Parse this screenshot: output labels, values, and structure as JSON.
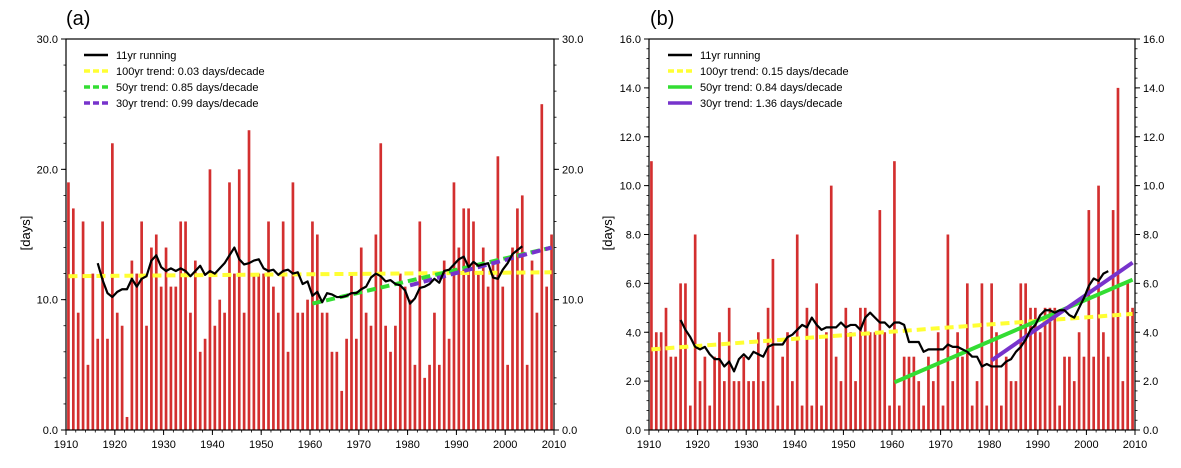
{
  "chart_data": [
    {
      "panel": "(a)",
      "type": "bar",
      "ylabel": "[days]",
      "xlim": [
        1910,
        2010
      ],
      "ylim": [
        0,
        30
      ],
      "y_ticks": [
        "0.0",
        "10.0",
        "20.0",
        "30.0"
      ],
      "x_ticks": [
        "1910",
        "1920",
        "1930",
        "1940",
        "1950",
        "1960",
        "1970",
        "1980",
        "1990",
        "2000",
        "2010"
      ],
      "grid": false,
      "legend_position": "top-left",
      "colors": {
        "bars": "#d32f2f",
        "running": "#000000",
        "trend100": "#ffff33",
        "trend50": "#33dd33",
        "trend30": "#7733cc"
      },
      "years": [
        1910,
        1911,
        1912,
        1913,
        1914,
        1915,
        1916,
        1917,
        1918,
        1919,
        1920,
        1921,
        1922,
        1923,
        1924,
        1925,
        1926,
        1927,
        1928,
        1929,
        1930,
        1931,
        1932,
        1933,
        1934,
        1935,
        1936,
        1937,
        1938,
        1939,
        1940,
        1941,
        1942,
        1943,
        1944,
        1945,
        1946,
        1947,
        1948,
        1949,
        1950,
        1951,
        1952,
        1953,
        1954,
        1955,
        1956,
        1957,
        1958,
        1959,
        1960,
        1961,
        1962,
        1963,
        1964,
        1965,
        1966,
        1967,
        1968,
        1969,
        1970,
        1971,
        1972,
        1973,
        1974,
        1975,
        1976,
        1977,
        1978,
        1979,
        1980,
        1981,
        1982,
        1983,
        1984,
        1985,
        1986,
        1987,
        1988,
        1989,
        1990,
        1991,
        1992,
        1993,
        1994,
        1995,
        1996,
        1997,
        1998,
        1999,
        2000,
        2001,
        2002,
        2003,
        2004,
        2005,
        2006,
        2007,
        2008,
        2009
      ],
      "values": [
        19,
        17,
        9,
        16,
        5,
        12,
        7,
        16,
        7,
        22,
        9,
        8,
        1,
        13,
        12,
        16,
        8,
        14,
        15,
        11,
        14,
        11,
        11,
        16,
        16,
        9,
        13,
        6,
        7,
        20,
        8,
        10,
        9,
        19,
        12,
        20,
        9,
        23,
        12,
        12,
        12,
        16,
        11,
        9,
        16,
        6,
        19,
        9,
        9,
        10,
        16,
        15,
        9,
        9,
        6,
        6,
        3,
        7,
        12,
        7,
        14,
        9,
        8,
        15,
        22,
        8,
        6,
        8,
        12,
        11,
        10,
        5,
        16,
        4,
        5,
        9,
        5,
        13,
        7,
        19,
        14,
        17,
        17,
        16,
        12,
        14,
        11,
        13,
        21,
        11,
        5,
        14,
        17,
        18,
        5,
        13,
        9,
        25,
        11,
        15
      ],
      "series": [
        {
          "name": "11yr running",
          "x": [
            1916,
            1917,
            1918,
            1919,
            1920,
            1921,
            1922,
            1923,
            1924,
            1925,
            1926,
            1927,
            1928,
            1929,
            1930,
            1931,
            1932,
            1933,
            1934,
            1935,
            1936,
            1937,
            1938,
            1939,
            1940,
            1941,
            1942,
            1943,
            1944,
            1945,
            1946,
            1947,
            1948,
            1949,
            1950,
            1951,
            1952,
            1953,
            1954,
            1955,
            1956,
            1957,
            1958,
            1959,
            1960,
            1961,
            1962,
            1963,
            1964,
            1965,
            1966,
            1967,
            1968,
            1969,
            1970,
            1971,
            1972,
            1973,
            1974,
            1975,
            1976,
            1977,
            1978,
            1979,
            1980,
            1981,
            1982,
            1983,
            1984,
            1985,
            1986,
            1987,
            1988,
            1989,
            1990,
            1991,
            1992,
            1993,
            1994,
            1995,
            1996,
            1997,
            1998,
            1999,
            2000,
            2001,
            2002,
            2003
          ],
          "y": [
            12.8,
            11.5,
            10.5,
            10.2,
            10.6,
            10.8,
            10.8,
            11.6,
            11,
            11.6,
            11.8,
            13,
            13.4,
            12.5,
            12.2,
            12.4,
            12.2,
            12.4,
            12.2,
            11.8,
            12.2,
            12.6,
            11.9,
            12.2,
            12,
            12.4,
            12.8,
            13.4,
            14,
            13.1,
            12.7,
            12.8,
            13,
            13.1,
            12.4,
            12.2,
            12.3,
            11.9,
            12.2,
            12.3,
            12,
            12.1,
            11.2,
            11.4,
            10.3,
            10.6,
            9.8,
            10.5,
            10.4,
            10.2,
            10.2,
            10.3,
            10.5,
            10.5,
            10.8,
            11,
            11.7,
            12,
            11.8,
            11.4,
            11.5,
            11.2,
            11.1,
            10.7,
            9.7,
            10.1,
            10.9,
            11,
            11.2,
            11.6,
            11.3,
            12.2,
            12.3,
            12.7,
            13.1,
            13.3,
            12.5,
            12.9,
            12.6,
            12.7,
            12.8,
            11.7,
            11.6,
            12.3,
            12.8,
            13.5,
            13.8,
            14.1
          ]
        },
        {
          "name": "100yr trend:  0.03 days/decade",
          "x": [
            1910,
            2009
          ],
          "y": [
            11.8,
            12.1
          ],
          "dashed": true
        },
        {
          "name": "50yr trend:  0.85 days/decade",
          "x": [
            1960,
            2009
          ],
          "y": [
            9.7,
            14.0
          ],
          "dashed": true
        },
        {
          "name": "30yr trend:  0.99 days/decade",
          "x": [
            1980,
            2009
          ],
          "y": [
            11.1,
            14.0
          ],
          "dashed": true
        }
      ]
    },
    {
      "panel": "(b)",
      "type": "bar",
      "ylabel": "[days]",
      "xlim": [
        1910,
        2010
      ],
      "ylim": [
        0,
        16
      ],
      "y_ticks": [
        "0.0",
        "2.0",
        "4.0",
        "6.0",
        "8.0",
        "10.0",
        "12.0",
        "14.0",
        "16.0"
      ],
      "x_ticks": [
        "1910",
        "1920",
        "1930",
        "1940",
        "1950",
        "1960",
        "1970",
        "1980",
        "1990",
        "2000",
        "2010"
      ],
      "grid": false,
      "legend_position": "top-left",
      "colors": {
        "bars": "#d32f2f",
        "running": "#000000",
        "trend100": "#ffff33",
        "trend50": "#33dd33",
        "trend30": "#7733cc"
      },
      "years": [
        1910,
        1911,
        1912,
        1913,
        1914,
        1915,
        1916,
        1917,
        1918,
        1919,
        1920,
        1921,
        1922,
        1923,
        1924,
        1925,
        1926,
        1927,
        1928,
        1929,
        1930,
        1931,
        1932,
        1933,
        1934,
        1935,
        1936,
        1937,
        1938,
        1939,
        1940,
        1941,
        1942,
        1943,
        1944,
        1945,
        1946,
        1947,
        1948,
        1949,
        1950,
        1951,
        1952,
        1953,
        1954,
        1955,
        1956,
        1957,
        1958,
        1959,
        1960,
        1961,
        1962,
        1963,
        1964,
        1965,
        1966,
        1967,
        1968,
        1969,
        1970,
        1971,
        1972,
        1973,
        1974,
        1975,
        1976,
        1977,
        1978,
        1979,
        1980,
        1981,
        1982,
        1983,
        1984,
        1985,
        1986,
        1987,
        1988,
        1989,
        1990,
        1991,
        1992,
        1993,
        1994,
        1995,
        1996,
        1997,
        1998,
        1999,
        2000,
        2001,
        2002,
        2003,
        2004,
        2005,
        2006,
        2007,
        2008,
        2009
      ],
      "values": [
        11,
        4,
        4,
        5,
        3,
        3,
        6,
        6,
        1,
        8,
        2,
        3,
        1,
        3,
        4,
        2,
        5,
        2,
        2,
        3,
        2,
        2,
        4,
        2,
        5,
        7,
        1,
        3,
        4,
        2,
        8,
        1,
        5,
        1,
        6,
        1,
        4,
        10,
        3,
        2,
        5,
        4,
        2,
        5,
        5,
        4,
        4,
        9,
        4,
        1,
        11,
        1,
        3,
        3,
        3,
        2,
        1,
        3,
        2,
        4,
        1,
        8,
        2,
        4,
        3,
        6,
        1,
        2,
        6,
        1,
        6,
        4,
        1,
        3,
        2,
        2,
        6,
        6,
        5,
        5,
        4,
        5,
        5,
        5,
        1,
        3,
        3,
        2,
        4,
        3,
        9,
        3,
        10,
        4,
        3,
        9,
        14,
        2,
        6,
        5
      ],
      "series": [
        {
          "name": "11yr running",
          "x": [
            1916,
            1917,
            1918,
            1919,
            1920,
            1921,
            1922,
            1923,
            1924,
            1925,
            1926,
            1927,
            1928,
            1929,
            1930,
            1931,
            1932,
            1933,
            1934,
            1935,
            1936,
            1937,
            1938,
            1939,
            1940,
            1941,
            1942,
            1943,
            1944,
            1945,
            1946,
            1947,
            1948,
            1949,
            1950,
            1951,
            1952,
            1953,
            1954,
            1955,
            1956,
            1957,
            1958,
            1959,
            1960,
            1961,
            1962,
            1963,
            1964,
            1965,
            1966,
            1967,
            1968,
            1969,
            1970,
            1971,
            1972,
            1973,
            1974,
            1975,
            1976,
            1977,
            1978,
            1979,
            1980,
            1981,
            1982,
            1983,
            1984,
            1985,
            1986,
            1987,
            1988,
            1989,
            1990,
            1991,
            1992,
            1993,
            1994,
            1995,
            1996,
            1997,
            1998,
            1999,
            2000,
            2001,
            2002,
            2003,
            2004
          ],
          "y": [
            4.5,
            4.1,
            3.8,
            3.4,
            3.3,
            3.4,
            3.1,
            2.9,
            2.9,
            2.6,
            2.8,
            2.4,
            2.9,
            3.1,
            2.9,
            3.2,
            3.1,
            3,
            3.4,
            3.5,
            3.5,
            3.5,
            3.8,
            3.9,
            4.1,
            4.3,
            4.2,
            4.6,
            4.3,
            4.1,
            4.2,
            4.2,
            4.2,
            4.4,
            4.2,
            4.3,
            4.3,
            4.1,
            4.6,
            4.8,
            4.6,
            4.4,
            4.4,
            4.2,
            4.4,
            4.4,
            4.3,
            3.6,
            3.6,
            3.6,
            3.2,
            3.3,
            3.3,
            3.3,
            3.3,
            3.5,
            3.4,
            3.4,
            3.3,
            3.2,
            3,
            3,
            2.6,
            2.7,
            2.6,
            2.6,
            2.6,
            2.8,
            2.9,
            3.2,
            3.4,
            3.7,
            4.1,
            4.3,
            4.7,
            4.9,
            4.9,
            4.8,
            4.9,
            4.9,
            4.7,
            4.6,
            5,
            5.4,
            5.9,
            6.2,
            6.1,
            6.4,
            6.5
          ]
        },
        {
          "name": "100yr trend:  0.15 days/decade",
          "x": [
            1910,
            2009
          ],
          "y": [
            3.3,
            4.75
          ],
          "dashed": true
        },
        {
          "name": "50yr trend:  0.84 days/decade",
          "x": [
            1960,
            2009
          ],
          "y": [
            1.95,
            6.15
          ],
          "dashed": false
        },
        {
          "name": "30yr trend:  1.36 days/decade",
          "x": [
            1980,
            2009
          ],
          "y": [
            2.85,
            6.85
          ],
          "dashed": false
        }
      ]
    }
  ]
}
